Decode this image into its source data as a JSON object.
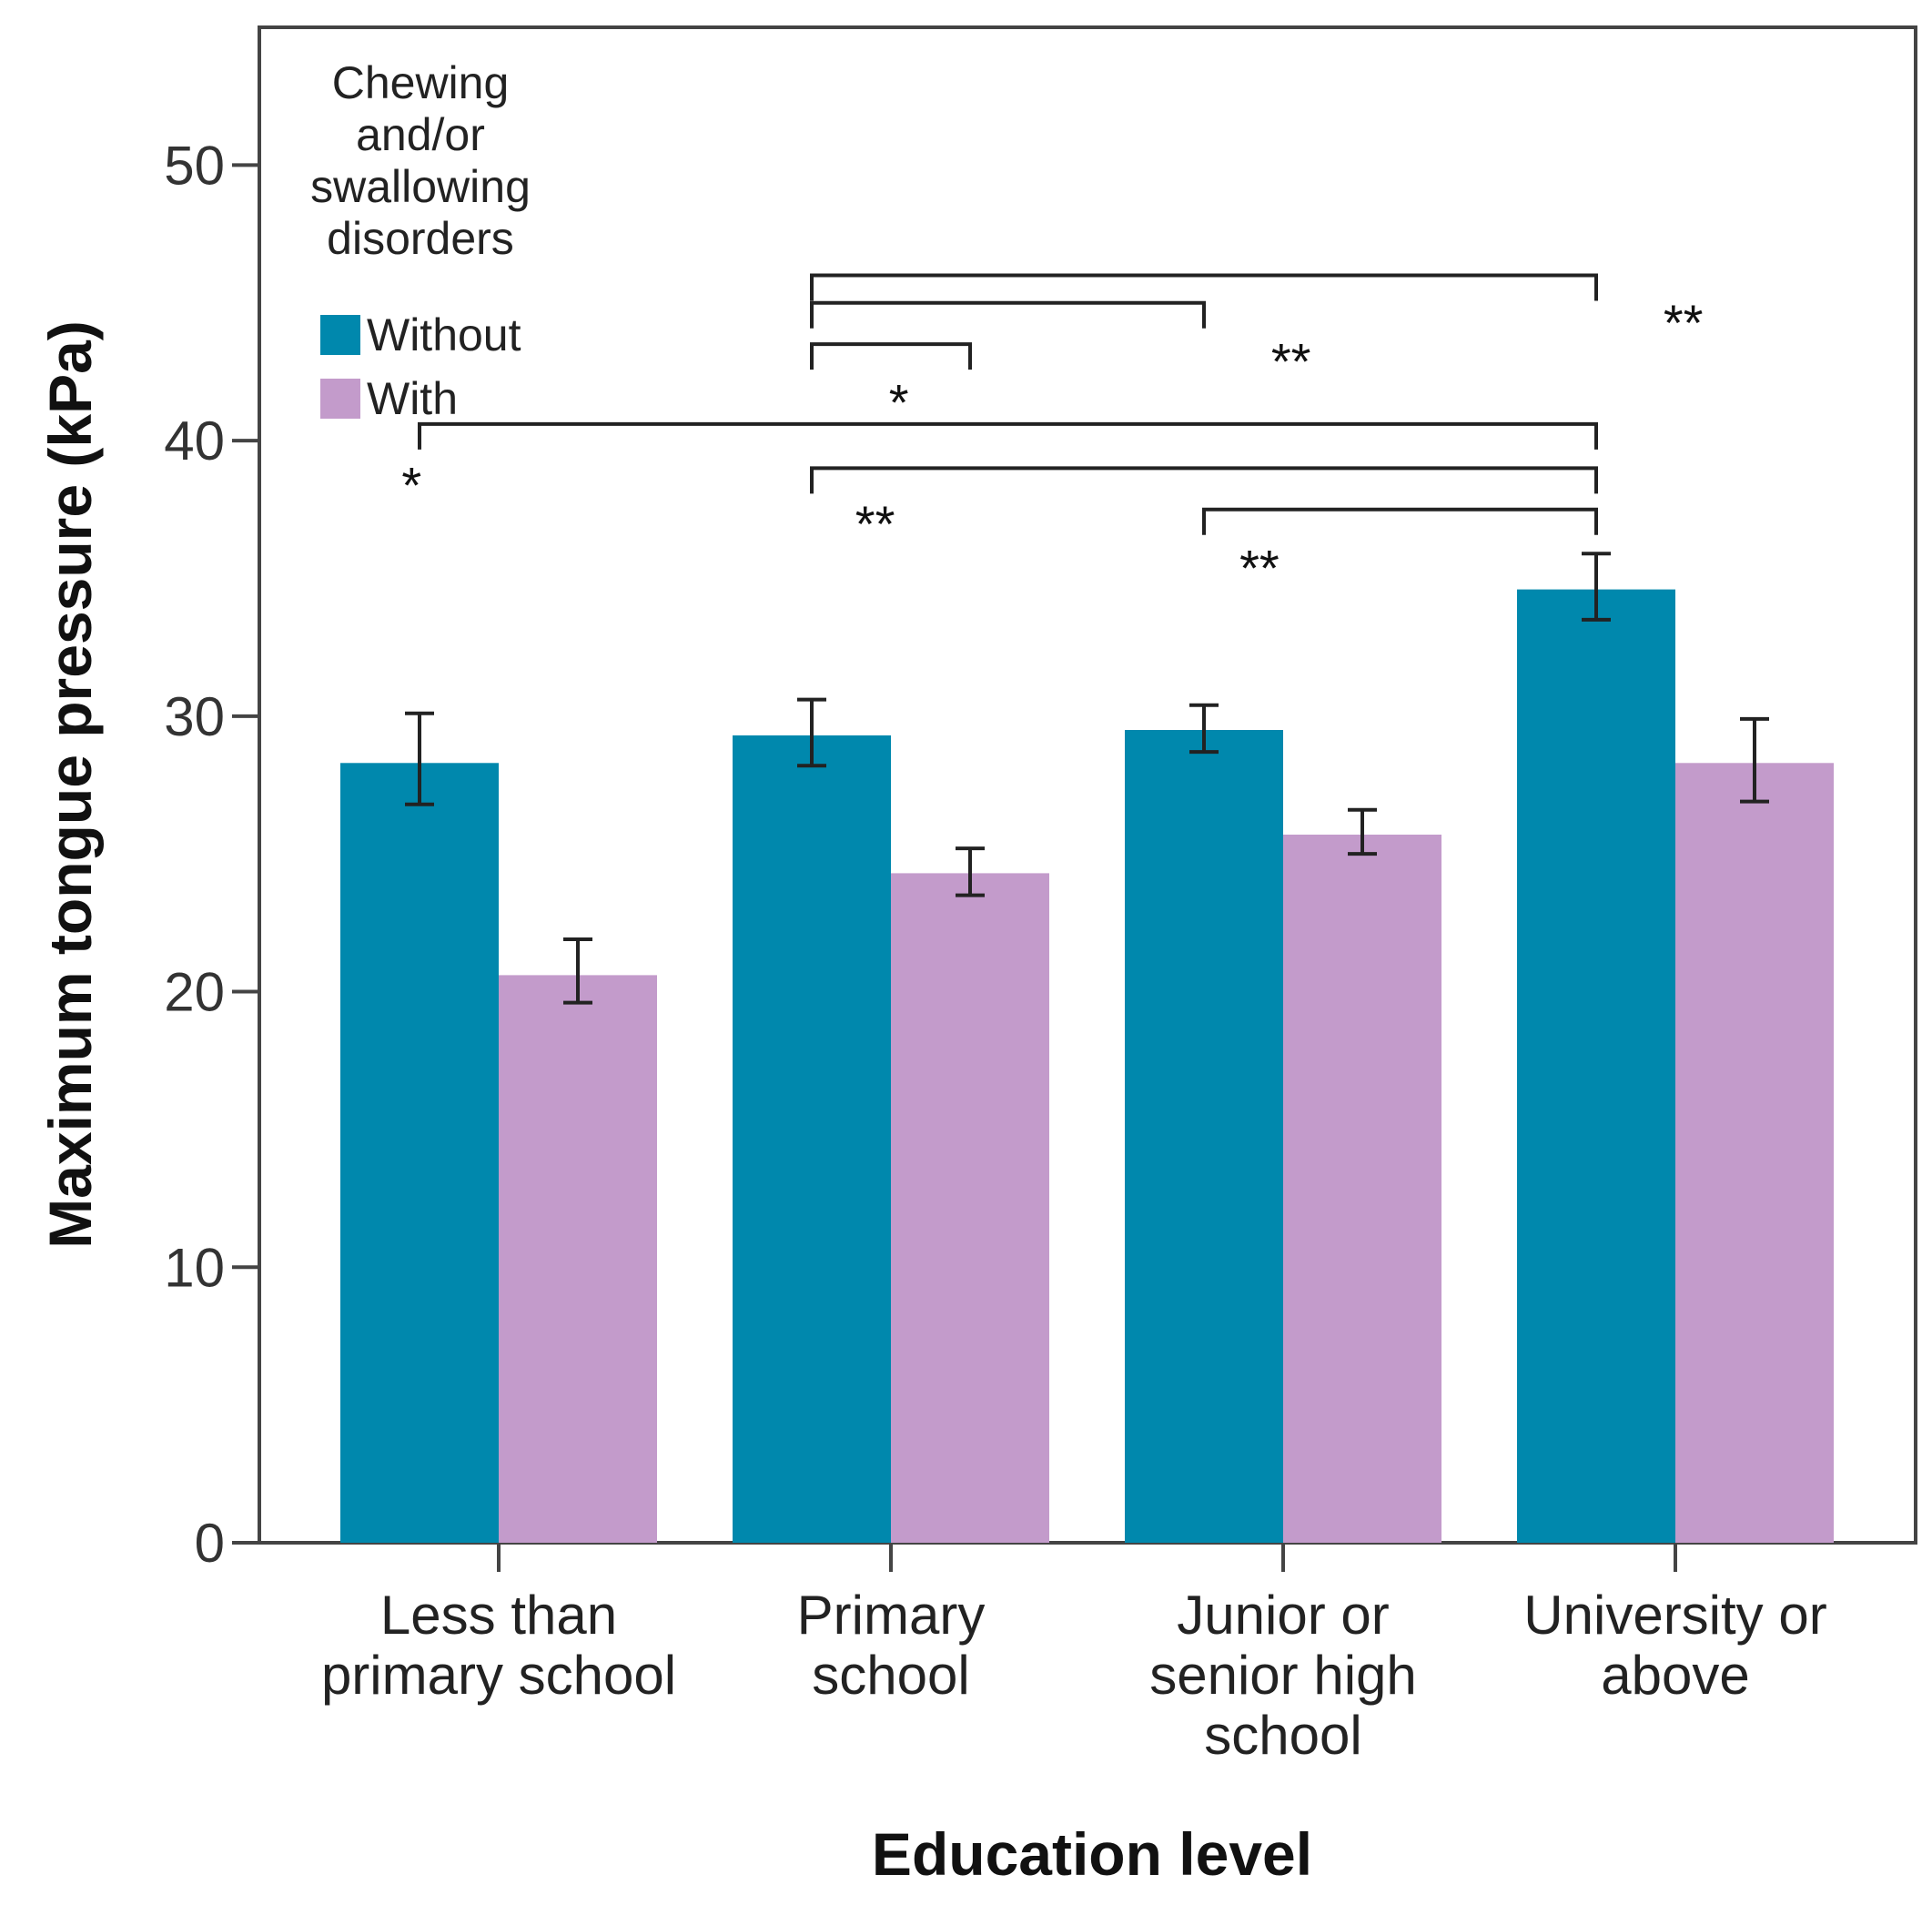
{
  "chart_data": {
    "type": "bar",
    "title": "",
    "xlabel": "Education level",
    "ylabel": "Maximum tongue pressure (kPa)",
    "ylim": [
      0,
      55
    ],
    "yticks": [
      0,
      10,
      20,
      30,
      40,
      50
    ],
    "grid": false,
    "categories": [
      [
        "Less than",
        "primary school"
      ],
      [
        "Primary",
        "school"
      ],
      [
        "Junior or",
        "senior high",
        "school"
      ],
      [
        "University or",
        "above"
      ]
    ],
    "series": [
      {
        "name": "Without",
        "color": "#0088ad",
        "values": [
          28.3,
          29.3,
          29.5,
          34.6
        ],
        "err_low": [
          26.8,
          28.2,
          28.7,
          33.5
        ],
        "err_high": [
          30.1,
          30.6,
          30.4,
          35.9
        ]
      },
      {
        "name": "With",
        "color": "#c39bcb",
        "values": [
          20.6,
          24.3,
          25.7,
          28.3
        ],
        "err_low": [
          19.6,
          23.5,
          25.0,
          26.9
        ],
        "err_high": [
          21.9,
          25.2,
          26.6,
          29.9
        ]
      }
    ],
    "legend": {
      "title": [
        "Chewing",
        "and/or",
        "swallowing",
        "disorders"
      ],
      "position": "top-left"
    },
    "significance": [
      {
        "from_cat": 1,
        "from_series": 0,
        "to_cat": 3,
        "to_series": 0,
        "y": 46.0,
        "label": "**",
        "label_y": 44.3,
        "label_cat": 3,
        "label_series": 0.05
      },
      {
        "from_cat": 1,
        "from_series": 0,
        "to_cat": 2,
        "to_series": 0,
        "y": 45.0,
        "label": "**",
        "label_y": 42.9,
        "label_cat": 2,
        "label_series": 0.05
      },
      {
        "from_cat": 1,
        "from_series": 0,
        "to_cat": 1,
        "to_series": 1,
        "y": 43.5,
        "label": "*",
        "label_y": 41.4,
        "label_cat": 1,
        "label_series": 0.05
      },
      {
        "from_cat": 0,
        "from_series": 0,
        "to_cat": 3,
        "to_series": 0,
        "y": 40.6,
        "label": "*",
        "label_y": 38.4,
        "label_cat": 0,
        "label_series": -0.55
      },
      {
        "from_cat": 1,
        "from_series": 0,
        "to_cat": 3,
        "to_series": 0,
        "y": 39.0,
        "label": "**",
        "label_y": 37.0,
        "label_cat": 1,
        "label_series": -0.1
      },
      {
        "from_cat": 2,
        "from_series": 0,
        "to_cat": 3,
        "to_series": 0,
        "y": 37.5,
        "label": "**",
        "label_y": 35.4,
        "label_cat": 2,
        "label_series": -0.15
      }
    ]
  }
}
